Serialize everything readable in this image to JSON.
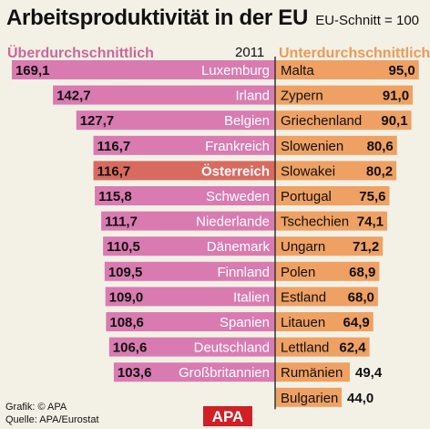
{
  "title": "Arbeitsproduktivität in der EU",
  "note": "EU-Schnitt = 100",
  "year": "2011",
  "left_heading": "Überdurchschnittlich",
  "right_heading": "Unterdurchschnittlich",
  "footer": {
    "credit": "Grafik: © APA",
    "source": "Quelle: APA/Eurostat"
  },
  "logo_text": "APA",
  "colors": {
    "above": "#d97bb1",
    "highlight": "#d96a5f",
    "below": "#efa163",
    "divider": "#333333",
    "above_heading": "#cc6699",
    "below_heading": "#ee9955"
  },
  "chart_data": {
    "type": "bar",
    "title": "Arbeitsproduktivität in der EU",
    "reference_value": 100,
    "reference_label": "EU-Schnitt = 100",
    "year": "2011",
    "above": {
      "name": "Überdurchschnittlich",
      "categories": [
        "Luxemburg",
        "Irland",
        "Belgien",
        "Frankreich",
        "Österreich",
        "Schweden",
        "Niederlande",
        "Dänemark",
        "Finnland",
        "Italien",
        "Spanien",
        "Deutschland",
        "Großbritannien"
      ],
      "values": [
        169.1,
        142.7,
        127.7,
        116.7,
        116.7,
        115.8,
        111.7,
        110.5,
        109.5,
        109.0,
        108.6,
        106.6,
        103.6
      ],
      "labels": [
        "169,1",
        "142,7",
        "127,7",
        "116,7",
        "116,7",
        "115,8",
        "111,7",
        "110,5",
        "109,5",
        "109,0",
        "108,6",
        "106,6",
        "103,6"
      ],
      "highlight": "Österreich"
    },
    "below": {
      "name": "Unterdurchschnittlich",
      "categories": [
        "Malta",
        "Zypern",
        "Griechenland",
        "Slowenien",
        "Slowakei",
        "Portugal",
        "Tschechien",
        "Ungarn",
        "Polen",
        "Estland",
        "Litauen",
        "Lettland",
        "Rumänien",
        "Bulgarien"
      ],
      "values": [
        95.0,
        91.0,
        90.1,
        80.6,
        80.2,
        75.6,
        74.1,
        71.2,
        68.9,
        68.0,
        64.9,
        62.4,
        49.4,
        44.0
      ],
      "labels": [
        "95,0",
        "91,0",
        "90,1",
        "80,6",
        "80,2",
        "75,6",
        "74,1",
        "71,2",
        "68,9",
        "68,0",
        "64,9",
        "62,4",
        "49,4",
        "44,0"
      ]
    }
  }
}
